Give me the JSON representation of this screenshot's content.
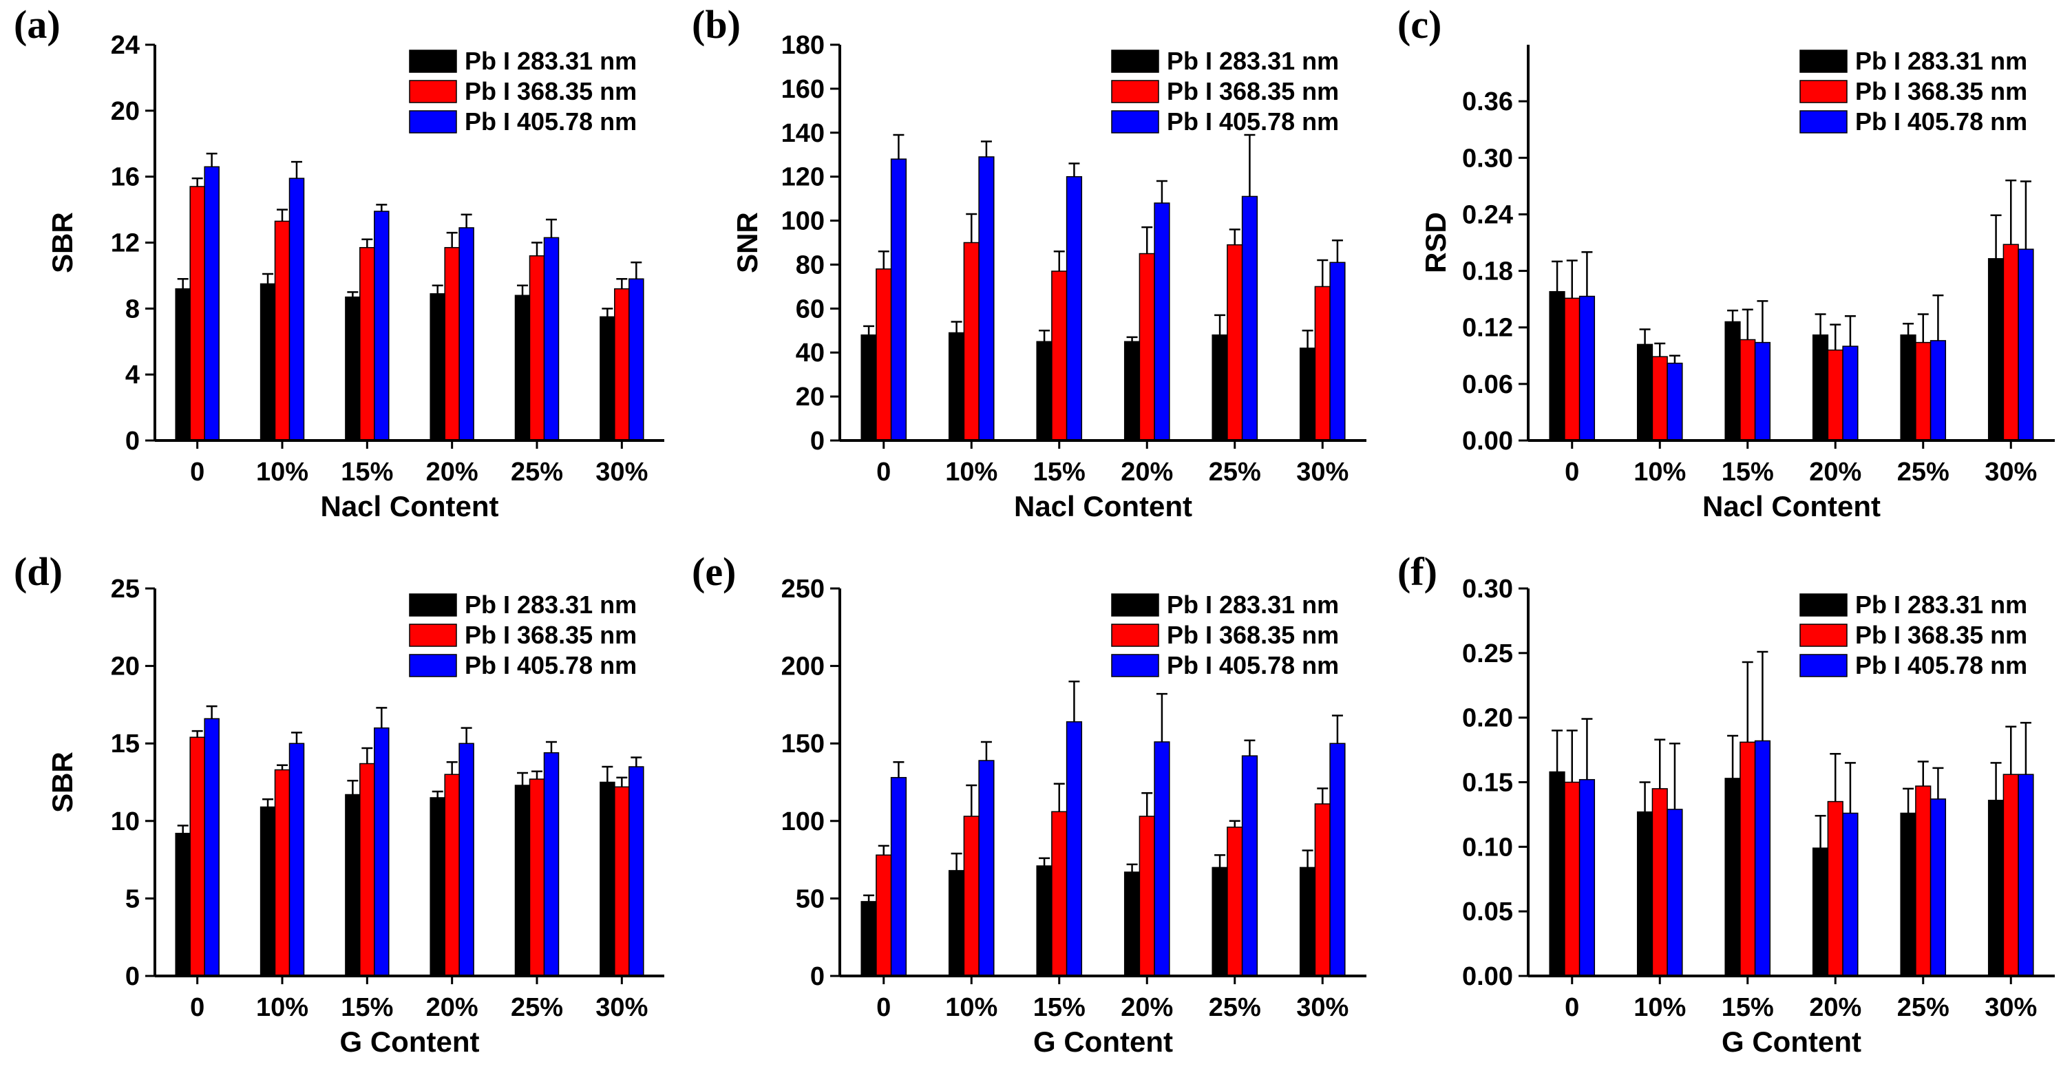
{
  "chart_data": [
    {
      "type": "bar",
      "panel": "(a)",
      "xlabel": "Nacl Content",
      "ylabel": "SBR",
      "categories": [
        "0",
        "10%",
        "15%",
        "20%",
        "25%",
        "30%"
      ],
      "ylim": [
        0,
        24
      ],
      "yticks": [
        "0",
        "4",
        "8",
        "12",
        "16",
        "20",
        "24"
      ],
      "legend_position": "top-right",
      "series": [
        {
          "name": "Pb I 283.31 nm",
          "color": "#000000",
          "values": [
            9.2,
            9.5,
            8.7,
            8.9,
            8.8,
            7.5
          ],
          "errors": [
            0.6,
            0.6,
            0.3,
            0.5,
            0.6,
            0.5
          ]
        },
        {
          "name": "Pb I 368.35 nm",
          "color": "#ff0000",
          "values": [
            15.4,
            13.3,
            11.7,
            11.7,
            11.2,
            9.2
          ],
          "errors": [
            0.5,
            0.7,
            0.5,
            0.9,
            0.8,
            0.6
          ]
        },
        {
          "name": "Pb I 405.78 nm",
          "color": "#0000ff",
          "values": [
            16.6,
            15.9,
            13.9,
            12.9,
            12.3,
            9.8
          ],
          "errors": [
            0.8,
            1.0,
            0.4,
            0.8,
            1.1,
            1.0
          ]
        }
      ]
    },
    {
      "type": "bar",
      "panel": "(b)",
      "xlabel": "Nacl Content",
      "ylabel": "SNR",
      "categories": [
        "0",
        "10%",
        "15%",
        "20%",
        "25%",
        "30%"
      ],
      "ylim": [
        0,
        180
      ],
      "yticks": [
        "0",
        "20",
        "40",
        "60",
        "80",
        "100",
        "120",
        "140",
        "160",
        "180"
      ],
      "legend_position": "top-right",
      "series": [
        {
          "name": "Pb I 283.31 nm",
          "color": "#000000",
          "values": [
            48,
            49,
            45,
            45,
            48,
            42
          ],
          "errors": [
            4,
            5,
            5,
            2,
            9,
            8
          ]
        },
        {
          "name": "Pb I 368.35 nm",
          "color": "#ff0000",
          "values": [
            78,
            90,
            77,
            85,
            89,
            70
          ],
          "errors": [
            8,
            13,
            9,
            12,
            7,
            12
          ]
        },
        {
          "name": "Pb I 405.78 nm",
          "color": "#0000ff",
          "values": [
            128,
            129,
            120,
            108,
            111,
            81
          ],
          "errors": [
            11,
            7,
            6,
            10,
            28,
            10
          ]
        }
      ]
    },
    {
      "type": "bar",
      "panel": "(c)",
      "xlabel": "Nacl Content",
      "ylabel": "RSD",
      "categories": [
        "0",
        "10%",
        "15%",
        "20%",
        "25%",
        "30%"
      ],
      "ylim": [
        0,
        0.42
      ],
      "yticks": [
        "0.00",
        "0.06",
        "0.12",
        "0.18",
        "0.24",
        "0.30",
        "0.36"
      ],
      "legend_position": "top-right",
      "series": [
        {
          "name": "Pb I 283.31 nm",
          "color": "#000000",
          "values": [
            0.158,
            0.102,
            0.126,
            0.112,
            0.112,
            0.193
          ],
          "errors": [
            0.032,
            0.016,
            0.012,
            0.022,
            0.012,
            0.046
          ]
        },
        {
          "name": "Pb I 368.35 nm",
          "color": "#ff0000",
          "values": [
            0.151,
            0.089,
            0.107,
            0.096,
            0.104,
            0.208
          ],
          "errors": [
            0.04,
            0.014,
            0.032,
            0.027,
            0.03,
            0.068
          ]
        },
        {
          "name": "Pb I 405.78 nm",
          "color": "#0000ff",
          "values": [
            0.153,
            0.082,
            0.104,
            0.1,
            0.106,
            0.203
          ],
          "errors": [
            0.047,
            0.008,
            0.044,
            0.032,
            0.048,
            0.072
          ]
        }
      ]
    },
    {
      "type": "bar",
      "panel": "(d)",
      "xlabel": "G Content",
      "ylabel": "SBR",
      "categories": [
        "0",
        "10%",
        "15%",
        "20%",
        "25%",
        "30%"
      ],
      "ylim": [
        0,
        25
      ],
      "yticks": [
        "0",
        "5",
        "10",
        "15",
        "20",
        "25"
      ],
      "legend_position": "top-right",
      "series": [
        {
          "name": "Pb I 283.31 nm",
          "color": "#000000",
          "values": [
            9.2,
            10.9,
            11.7,
            11.5,
            12.3,
            12.5
          ],
          "errors": [
            0.5,
            0.5,
            0.9,
            0.4,
            0.8,
            1.0
          ]
        },
        {
          "name": "Pb I 368.35 nm",
          "color": "#ff0000",
          "values": [
            15.4,
            13.3,
            13.7,
            13.0,
            12.7,
            12.2
          ],
          "errors": [
            0.4,
            0.3,
            1.0,
            0.8,
            0.5,
            0.6
          ]
        },
        {
          "name": "Pb I 405.78 nm",
          "color": "#0000ff",
          "values": [
            16.6,
            15.0,
            16.0,
            15.0,
            14.4,
            13.5
          ],
          "errors": [
            0.8,
            0.7,
            1.3,
            1.0,
            0.7,
            0.6
          ]
        }
      ]
    },
    {
      "type": "bar",
      "panel": "(e)",
      "xlabel": "G Content",
      "ylabel": "",
      "categories": [
        "0",
        "10%",
        "15%",
        "20%",
        "25%",
        "30%"
      ],
      "ylim": [
        0,
        250
      ],
      "yticks": [
        "0",
        "50",
        "100",
        "150",
        "200",
        "250"
      ],
      "legend_position": "top-right",
      "series": [
        {
          "name": "Pb I 283.31 nm",
          "color": "#000000",
          "values": [
            48,
            68,
            71,
            67,
            70,
            70
          ],
          "errors": [
            4,
            11,
            5,
            5,
            8,
            11
          ]
        },
        {
          "name": "Pb I 368.35 nm",
          "color": "#ff0000",
          "values": [
            78,
            103,
            106,
            103,
            96,
            111
          ],
          "errors": [
            6,
            20,
            18,
            15,
            4,
            10
          ]
        },
        {
          "name": "Pb I 405.78 nm",
          "color": "#0000ff",
          "values": [
            128,
            139,
            164,
            151,
            142,
            150
          ],
          "errors": [
            10,
            12,
            26,
            31,
            10,
            18
          ]
        }
      ]
    },
    {
      "type": "bar",
      "panel": "(f)",
      "xlabel": "G Content",
      "ylabel": "",
      "categories": [
        "0",
        "10%",
        "15%",
        "20%",
        "25%",
        "30%"
      ],
      "ylim": [
        0,
        0.3
      ],
      "yticks": [
        "0.00",
        "0.05",
        "0.10",
        "0.15",
        "0.20",
        "0.25",
        "0.30"
      ],
      "legend_position": "top-right",
      "series": [
        {
          "name": "Pb I 283.31 nm",
          "color": "#000000",
          "values": [
            0.158,
            0.127,
            0.153,
            0.099,
            0.126,
            0.136
          ],
          "errors": [
            0.032,
            0.023,
            0.033,
            0.025,
            0.019,
            0.029
          ]
        },
        {
          "name": "Pb I 368.35 nm",
          "color": "#ff0000",
          "values": [
            0.15,
            0.145,
            0.181,
            0.135,
            0.147,
            0.156
          ],
          "errors": [
            0.04,
            0.038,
            0.062,
            0.037,
            0.019,
            0.037
          ]
        },
        {
          "name": "Pb I 405.78 nm",
          "color": "#0000ff",
          "values": [
            0.152,
            0.129,
            0.182,
            0.126,
            0.137,
            0.156
          ],
          "errors": [
            0.047,
            0.051,
            0.069,
            0.039,
            0.024,
            0.04
          ]
        }
      ]
    }
  ]
}
